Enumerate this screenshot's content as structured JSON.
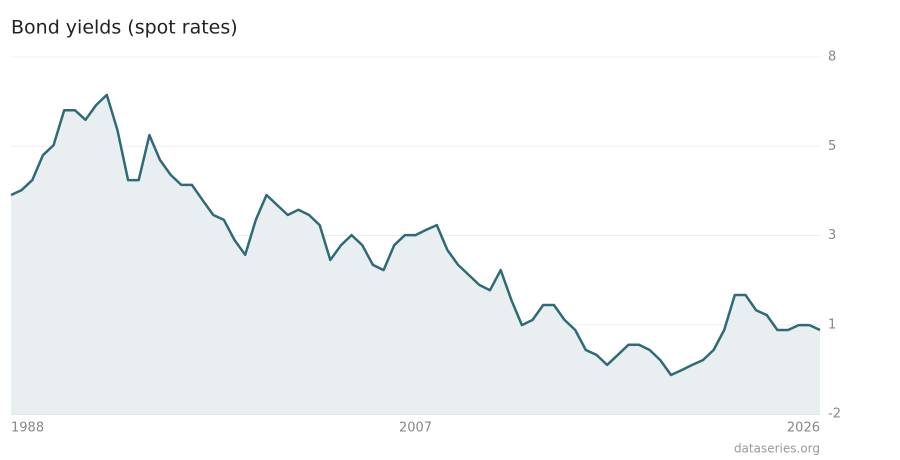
{
  "chart_data": {
    "type": "area",
    "title": "Bond yields (spot rates)",
    "source": "dataseries.org",
    "color": "#2e6b78",
    "fill": "#e9eef1",
    "grid": true,
    "xlim": [
      1988,
      2026
    ],
    "xticks": [
      1988,
      2007,
      2026
    ],
    "ylim": [
      -1.8,
      7.8
    ],
    "yticks": [
      {
        "value": -1.8,
        "label": "-2"
      },
      {
        "value": 0.6,
        "label": "1"
      },
      {
        "value": 3.0,
        "label": "3"
      },
      {
        "value": 5.4,
        "label": "5"
      },
      {
        "value": 7.8,
        "label": "8"
      }
    ],
    "x": [
      1988,
      1988.5,
      1989,
      1989.5,
      1990,
      1990.5,
      1991,
      1991.5,
      1992,
      1992.5,
      1993,
      1993.5,
      1994,
      1994.5,
      1995,
      1995.5,
      1996,
      1996.5,
      1997,
      1997.5,
      1998,
      1998.5,
      1999,
      1999.5,
      2000,
      2000.5,
      2001,
      2001.5,
      2002,
      2002.5,
      2003,
      2003.5,
      2004,
      2004.5,
      2005,
      2005.5,
      2006,
      2006.5,
      2007,
      2007.5,
      2008,
      2008.5,
      2009,
      2009.5,
      2010,
      2010.5,
      2011,
      2011.5,
      2012,
      2012.5,
      2013,
      2013.5,
      2014,
      2014.5,
      2015,
      2015.5,
      2016,
      2016.5,
      2017,
      2017.5,
      2018,
      2018.5,
      2019,
      2019.5,
      2020,
      2020.5,
      2021,
      2021.5,
      2022,
      2022.5,
      2023,
      2023.5,
      2024,
      2024.5,
      2025,
      2025.5,
      2026
    ],
    "values": [
      4.09,
      4.22,
      4.49,
      5.16,
      5.43,
      6.37,
      6.37,
      6.11,
      6.51,
      6.78,
      5.84,
      4.49,
      4.49,
      5.7,
      5.03,
      4.63,
      4.36,
      4.36,
      3.95,
      3.55,
      3.42,
      2.88,
      2.48,
      3.42,
      4.09,
      3.82,
      3.55,
      3.69,
      3.55,
      3.28,
      2.34,
      2.74,
      3.01,
      2.74,
      2.21,
      2.07,
      2.74,
      3.01,
      3.01,
      3.15,
      3.28,
      2.61,
      2.21,
      1.94,
      1.67,
      1.53,
      2.07,
      1.27,
      0.59,
      0.73,
      1.13,
      1.13,
      0.73,
      0.46,
      -0.08,
      -0.21,
      -0.48,
      -0.21,
      0.06,
      0.06,
      -0.08,
      -0.35,
      -0.75,
      -0.62,
      -0.48,
      -0.35,
      -0.08,
      0.46,
      1.4,
      1.4,
      0.99,
      0.86,
      0.46,
      0.46,
      0.59,
      0.59,
      0.46
    ]
  }
}
